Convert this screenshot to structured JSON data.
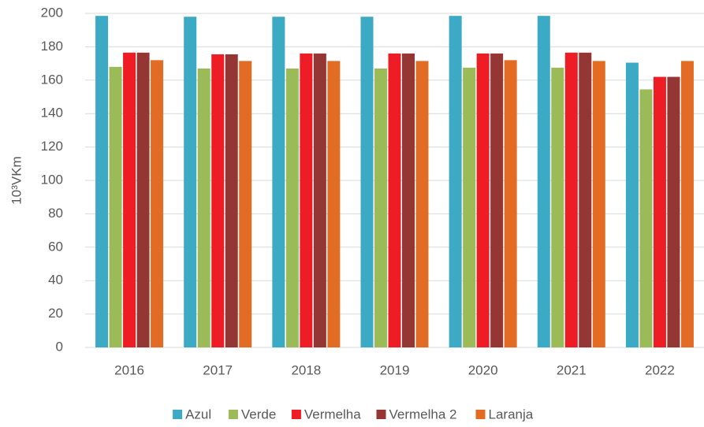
{
  "chart_data": {
    "type": "bar",
    "y_label": "10³VKm",
    "categories": [
      "2016",
      "2017",
      "2018",
      "2019",
      "2020",
      "2021",
      "2022"
    ],
    "series": [
      {
        "name": "Azul",
        "color": "#3caac4",
        "values": [
          198.5,
          198,
          198,
          198,
          198.5,
          198.5,
          170.5
        ]
      },
      {
        "name": "Verde",
        "color": "#9bbb59",
        "values": [
          168,
          167,
          167,
          167,
          167.5,
          167.5,
          154.5
        ]
      },
      {
        "name": "Vermelha",
        "color": "#ee1c25",
        "values": [
          176.5,
          175.5,
          176,
          176,
          176,
          176.5,
          162
        ]
      },
      {
        "name": "Vermelha 2",
        "color": "#943634",
        "values": [
          176.5,
          175.5,
          176,
          176,
          176,
          176.5,
          162
        ]
      },
      {
        "name": "Laranja",
        "color": "#e36c25",
        "values": [
          172,
          171.5,
          171.5,
          171.5,
          172,
          171.5,
          171.5
        ]
      }
    ],
    "ylim": [
      0,
      200
    ],
    "yticks": [
      0,
      20,
      40,
      60,
      80,
      100,
      120,
      140,
      160,
      180,
      200
    ],
    "grid": true,
    "legend": "bottom"
  }
}
